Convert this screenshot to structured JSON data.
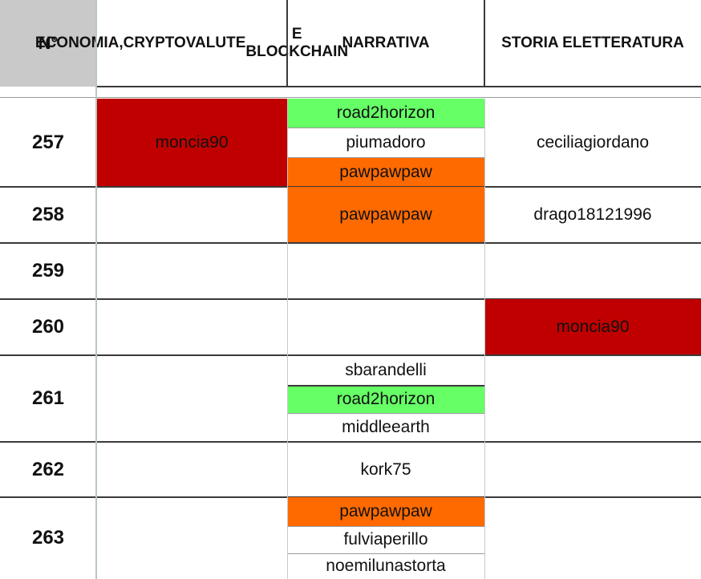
{
  "header": {
    "num_label": "N°",
    "col_economia": [
      "ECONOMIA,",
      "CRYPTOVALUTE",
      "E BLOCKCHAIN"
    ],
    "col_narrativa": [
      "NARRATIVA"
    ],
    "col_storia": [
      "STORIA E",
      "LETTERATURA"
    ]
  },
  "colors": {
    "header_gray": "#c9c9c9",
    "dark_red": "#c00000",
    "green": "#66ff66",
    "orange": "#ff6a00"
  },
  "rows": [
    {
      "num": "257",
      "economia": "moncia90",
      "narrativa": [
        "road2horizon",
        "piumadoro",
        "pawpawpaw"
      ],
      "storia": "ceciliagiordano"
    },
    {
      "num": "258",
      "economia": "",
      "narrativa": [
        "pawpawpaw"
      ],
      "storia": "drago18121996"
    },
    {
      "num": "259",
      "economia": "",
      "narrativa": [],
      "storia": ""
    },
    {
      "num": "260",
      "economia": "",
      "narrativa": [],
      "storia": "moncia90"
    },
    {
      "num": "261",
      "economia": "",
      "narrativa": [
        "sbarandelli",
        "road2horizon",
        "middleearth"
      ],
      "storia": ""
    },
    {
      "num": "262",
      "economia": "",
      "narrativa": [
        "kork75"
      ],
      "storia": ""
    },
    {
      "num": "263",
      "economia": "",
      "narrativa": [
        "pawpawpaw",
        "fulviaperillo",
        "noemilunastorta"
      ],
      "storia": ""
    }
  ]
}
